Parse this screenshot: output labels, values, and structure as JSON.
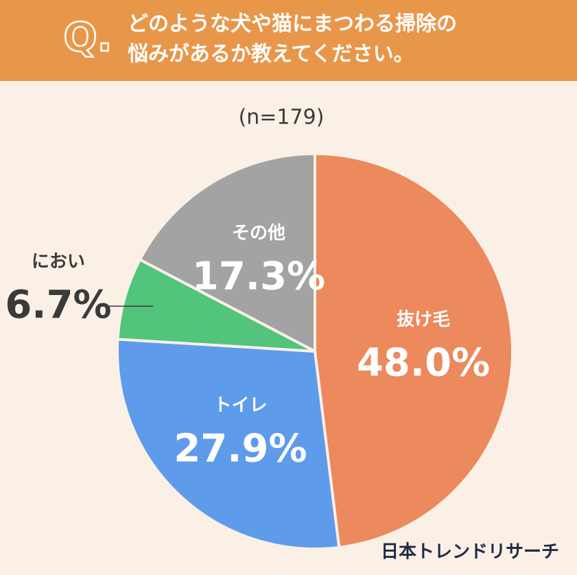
{
  "chart_data": {
    "type": "pie",
    "question_mark": "Q.",
    "title_lines": [
      "どのような犬や猫にまつわる掃除の",
      "悩みがあるか教えてください。"
    ],
    "subtitle": "(n=179)",
    "categories": [
      "抜け毛",
      "トイレ",
      "におい",
      "その他"
    ],
    "values": [
      48.0,
      27.9,
      6.7,
      17.3
    ],
    "value_labels": [
      "48.0%",
      "27.9%",
      "6.7%",
      "17.3%"
    ],
    "colors": [
      "#ec895d",
      "#5e9beb",
      "#52c47b",
      "#a3a3a3"
    ],
    "source": "日本トレンドリサーチ"
  }
}
